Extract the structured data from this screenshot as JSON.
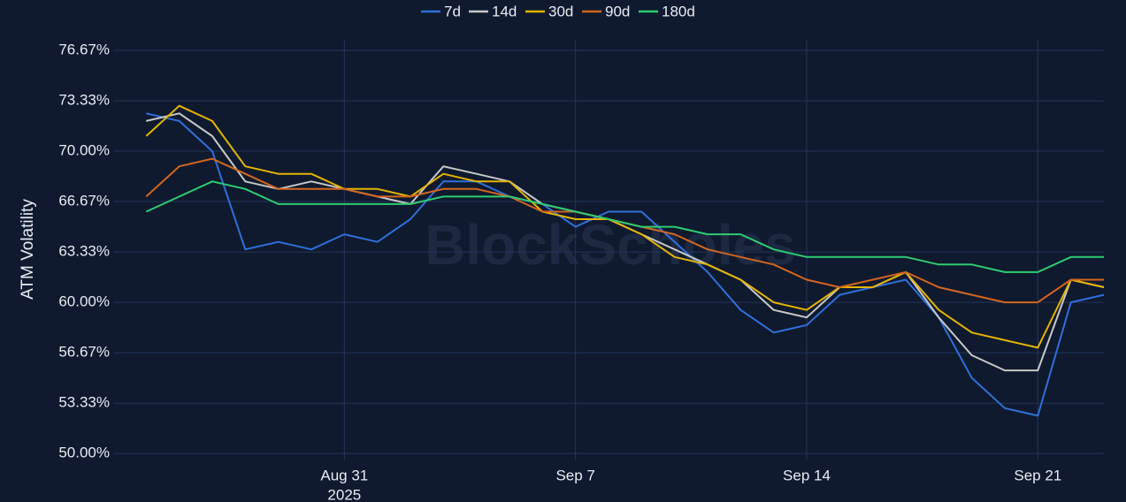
{
  "chart_data": {
    "type": "line",
    "y_label": "ATM Volatility",
    "watermark": "BlockScholes",
    "x": [
      "2025-08-25",
      "2025-08-26",
      "2025-08-27",
      "2025-08-28",
      "2025-08-29",
      "2025-08-30",
      "2025-08-31",
      "2025-09-01",
      "2025-09-02",
      "2025-09-03",
      "2025-09-04",
      "2025-09-05",
      "2025-09-06",
      "2025-09-07",
      "2025-09-08",
      "2025-09-09",
      "2025-09-10",
      "2025-09-11",
      "2025-09-12",
      "2025-09-13",
      "2025-09-14",
      "2025-09-15",
      "2025-09-16",
      "2025-09-17",
      "2025-09-18",
      "2025-09-19",
      "2025-09-20",
      "2025-09-21",
      "2025-09-22",
      "2025-09-23"
    ],
    "xlim": [
      "2025-08-24",
      "2025-09-23"
    ],
    "xticks": [
      {
        "value": "2025-08-31",
        "label": "Aug 31"
      },
      {
        "value": "2025-09-07",
        "label": "Sep 7"
      },
      {
        "value": "2025-09-14",
        "label": "Sep 14"
      },
      {
        "value": "2025-09-21",
        "label": "Sep 21"
      }
    ],
    "x_year_label": "2025",
    "ylim": [
      49.6,
      77.37
    ],
    "yticks": [
      {
        "value": 50,
        "label": "50.00%"
      },
      {
        "value": 53.33,
        "label": "53.33%"
      },
      {
        "value": 56.67,
        "label": "56.67%"
      },
      {
        "value": 60,
        "label": "60.00%"
      },
      {
        "value": 63.33,
        "label": "63.33%"
      },
      {
        "value": 66.67,
        "label": "66.67%"
      },
      {
        "value": 70,
        "label": "70.00%"
      },
      {
        "value": 73.33,
        "label": "73.33%"
      },
      {
        "value": 76.67,
        "label": "76.67%"
      }
    ],
    "grid": true,
    "legend": "top",
    "series": [
      {
        "name": "7d",
        "color": "#2f6fdb",
        "values": [
          72.5,
          72,
          70,
          63.5,
          64,
          63.5,
          64.5,
          64,
          65.5,
          68,
          68,
          67,
          66.5,
          65,
          66,
          66,
          64,
          62,
          59.5,
          58,
          58.5,
          60.5,
          61,
          61.5,
          59,
          55,
          53,
          52.5,
          60,
          60.5
        ]
      },
      {
        "name": "14d",
        "color": "#c8c8c8",
        "values": [
          72,
          72.5,
          71,
          68,
          67.5,
          68,
          67.5,
          67,
          66.5,
          69,
          68.5,
          68,
          66.5,
          66,
          65.5,
          64.5,
          63.5,
          62.5,
          61.5,
          59.5,
          59,
          61,
          61,
          62,
          59,
          56.5,
          55.5,
          55.5,
          61.5,
          61
        ]
      },
      {
        "name": "30d",
        "color": "#e6b400",
        "values": [
          71,
          73,
          72,
          69,
          68.5,
          68.5,
          67.5,
          67.5,
          67,
          68.5,
          68,
          68,
          66,
          65.5,
          65.5,
          64.5,
          63,
          62.5,
          61.5,
          60,
          59.5,
          61,
          61,
          62,
          59.5,
          58,
          57.5,
          57,
          61.5,
          61
        ]
      },
      {
        "name": "90d",
        "color": "#d4661e",
        "values": [
          67,
          69,
          69.5,
          68.5,
          67.5,
          67.5,
          67.5,
          67,
          67,
          67.5,
          67.5,
          67,
          66,
          66,
          65.5,
          65,
          64.5,
          63.5,
          63,
          62.5,
          61.5,
          61,
          61.5,
          62,
          61,
          60.5,
          60,
          60,
          61.5,
          61.5
        ]
      },
      {
        "name": "180d",
        "color": "#2ecc71",
        "values": [
          66,
          67,
          68,
          67.5,
          66.5,
          66.5,
          66.5,
          66.5,
          66.5,
          67,
          67,
          67,
          66.5,
          66,
          65.5,
          65,
          65,
          64.5,
          64.5,
          63.5,
          63,
          63,
          63,
          63,
          62.5,
          62.5,
          62,
          62,
          63,
          63
        ]
      }
    ]
  }
}
